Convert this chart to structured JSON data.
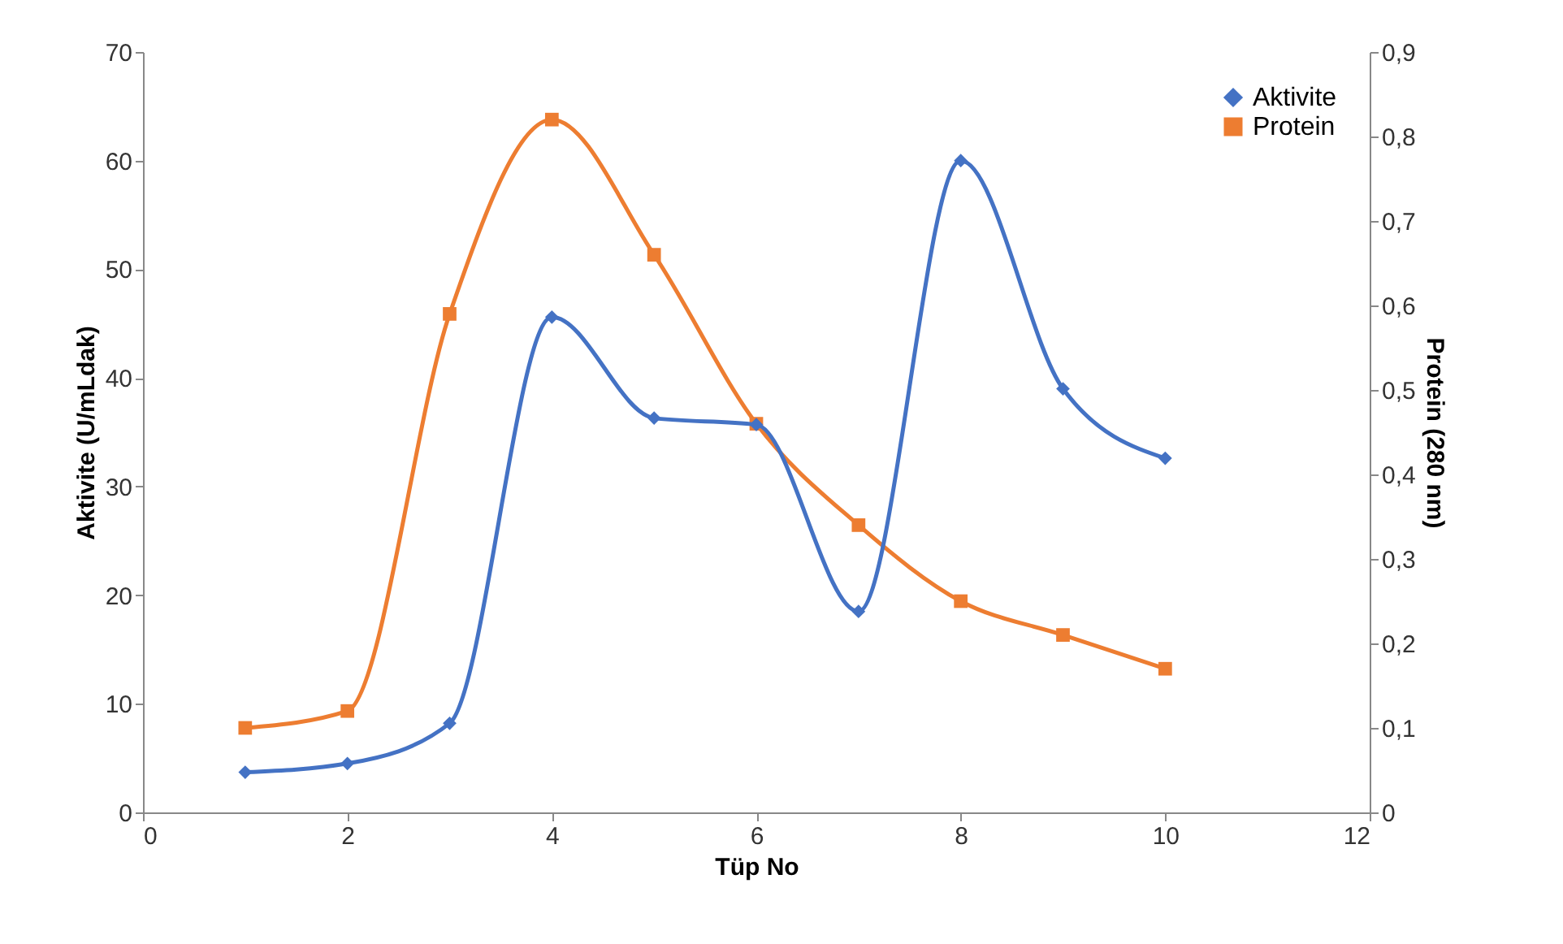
{
  "chart_data": {
    "type": "line",
    "xlabel": "Tüp No",
    "ylabel": "Aktivite (U/mLdak)",
    "y2label": "Protein (280 nm)",
    "x": [
      1,
      2,
      3,
      4,
      5,
      6,
      7,
      8,
      9,
      10
    ],
    "series": [
      {
        "name": "Aktivite",
        "color": "#4472c4",
        "marker": "diamond",
        "values": [
          3.7,
          4.5,
          8.2,
          45.6,
          36.3,
          35.7,
          18.5,
          60.0,
          39.0,
          32.6
        ]
      },
      {
        "name": "Protein",
        "color": "#ed7d31",
        "marker": "square",
        "axis": "y2",
        "values": [
          0.1,
          0.12,
          0.59,
          0.82,
          0.66,
          0.46,
          0.34,
          0.25,
          0.21,
          0.17
        ]
      }
    ],
    "xlim": [
      0,
      12
    ],
    "xticks": [
      0,
      2,
      4,
      6,
      8,
      10,
      12
    ],
    "ylim": [
      0,
      70
    ],
    "yticks": [
      0,
      10,
      20,
      30,
      40,
      50,
      60,
      70
    ],
    "y2lim": [
      0,
      0.9
    ],
    "y2ticks": [
      0,
      {
        "value": 0.1,
        "label": "0,1"
      },
      {
        "value": 0.2,
        "label": "0,2"
      },
      {
        "value": 0.3,
        "label": "0,3"
      },
      {
        "value": 0.4,
        "label": "0,4"
      },
      {
        "value": 0.5,
        "label": "0,5"
      },
      {
        "value": 0.6,
        "label": "0,6"
      },
      {
        "value": 0.7,
        "label": "0,7"
      },
      {
        "value": 0.8,
        "label": "0,8"
      },
      {
        "value": 0.9,
        "label": "0,9"
      }
    ],
    "grid": false,
    "legend": "top right",
    "line_style": "solid"
  }
}
